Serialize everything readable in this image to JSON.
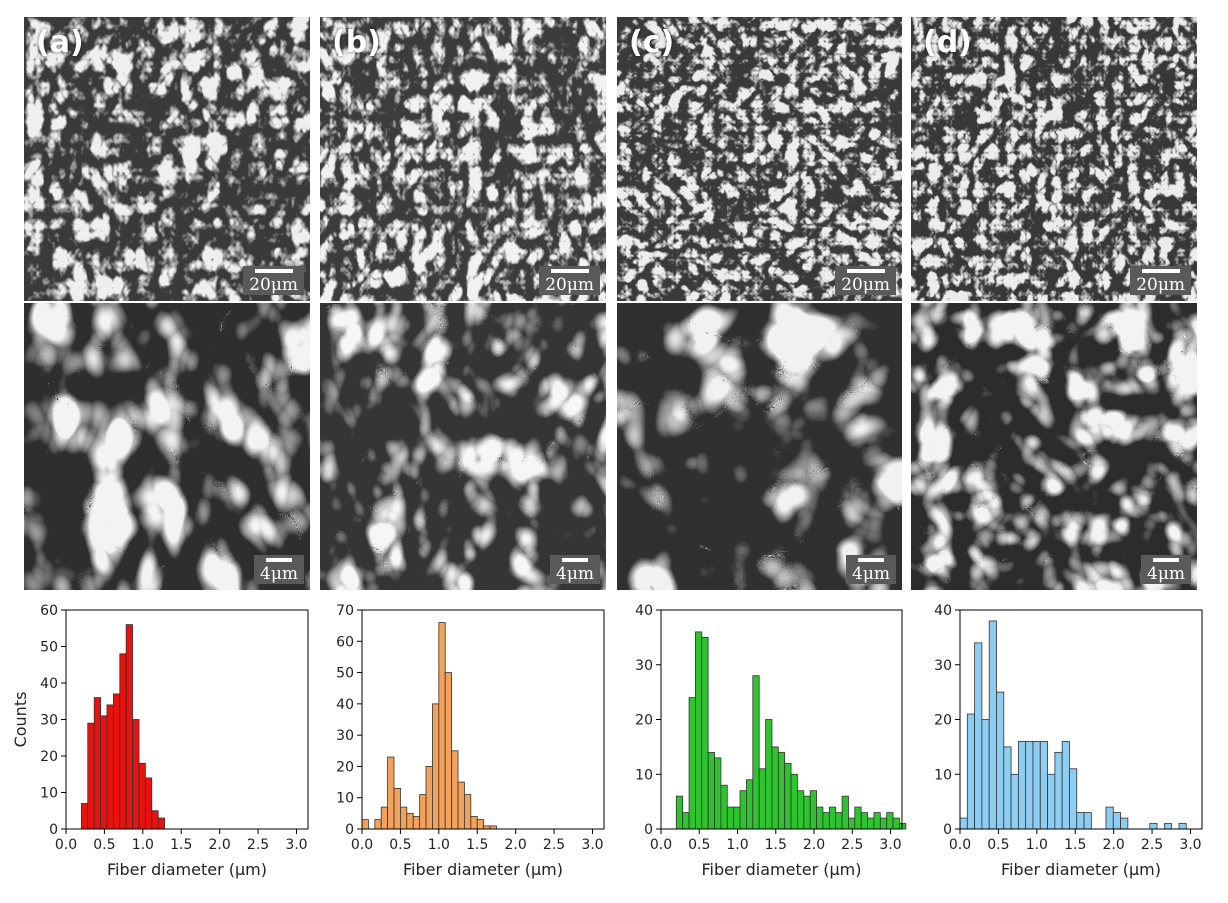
{
  "panels": [
    {
      "label": "(a)",
      "scale_top": "20μm",
      "scale_bottom": "4μm",
      "hist_color": "#e8120f"
    },
    {
      "label": "(b)",
      "scale_top": "20μm",
      "scale_bottom": "4μm",
      "hist_color": "#f2a25a"
    },
    {
      "label": "(c)",
      "scale_top": "20μm",
      "scale_bottom": "4μm",
      "hist_color": "#2ec42e"
    },
    {
      "label": "(d)",
      "scale_top": "20μm",
      "scale_bottom": "4μm",
      "hist_color": "#8ecdf2"
    }
  ],
  "chart_data": [
    {
      "type": "bar",
      "xlabel": "Fiber diameter (μm)",
      "ylabel": "Counts",
      "xlim": [
        0,
        3.15
      ],
      "ylim": [
        0,
        60
      ],
      "xticks": [
        "0.0",
        "0.5",
        "1.0",
        "1.5",
        "2.0",
        "2.5",
        "3.0"
      ],
      "yticks": [
        "0",
        "10",
        "20",
        "30",
        "40",
        "50",
        "60"
      ],
      "bin_width": 0.0833,
      "bin_starts": [
        0.2,
        0.283,
        0.367,
        0.45,
        0.533,
        0.617,
        0.7,
        0.783,
        0.867,
        0.95,
        1.033,
        1.117,
        1.2
      ],
      "values": [
        7,
        29,
        36,
        31,
        34,
        37,
        48,
        56,
        30,
        18,
        14,
        5,
        3
      ]
    },
    {
      "type": "bar",
      "xlabel": "Fiber diameter (μm)",
      "ylabel": "",
      "xlim": [
        0,
        3.15
      ],
      "ylim": [
        0,
        70
      ],
      "xticks": [
        "0.0",
        "0.5",
        "1.0",
        "1.5",
        "2.0",
        "2.5",
        "3.0"
      ],
      "yticks": [
        "0",
        "10",
        "20",
        "30",
        "40",
        "50",
        "60",
        "70"
      ],
      "bin_width": 0.0833,
      "bin_starts": [
        0.0,
        0.083,
        0.167,
        0.25,
        0.333,
        0.417,
        0.5,
        0.583,
        0.667,
        0.75,
        0.833,
        0.917,
        1.0,
        1.083,
        1.167,
        1.25,
        1.333,
        1.417,
        1.5,
        1.583,
        1.667,
        1.75
      ],
      "values": [
        3,
        0,
        3,
        7,
        23,
        13,
        7,
        5,
        4,
        11,
        20,
        40,
        66,
        50,
        25,
        15,
        11,
        4,
        3,
        1,
        1,
        0
      ]
    },
    {
      "type": "bar",
      "xlabel": "Fiber diameter (μm)",
      "ylabel": "",
      "xlim": [
        0,
        3.15
      ],
      "ylim": [
        0,
        40
      ],
      "xticks": [
        "0.0",
        "0.5",
        "1.0",
        "1.5",
        "2.0",
        "2.5",
        "3.0"
      ],
      "yticks": [
        "0",
        "10",
        "20",
        "30",
        "40"
      ],
      "bin_width": 0.0833,
      "bin_starts": [
        0.2,
        0.283,
        0.367,
        0.45,
        0.533,
        0.617,
        0.7,
        0.783,
        0.867,
        0.95,
        1.033,
        1.117,
        1.2,
        1.283,
        1.367,
        1.45,
        1.533,
        1.617,
        1.7,
        1.783,
        1.867,
        1.95,
        2.033,
        2.117,
        2.2,
        2.283,
        2.367,
        2.45,
        2.533,
        2.617,
        2.7,
        2.783,
        2.867,
        2.95,
        3.033,
        3.117
      ],
      "values": [
        6,
        3,
        24,
        36,
        35,
        14,
        13,
        8,
        4,
        4,
        7,
        9,
        28,
        11,
        20,
        15,
        14,
        12,
        10,
        7,
        6,
        7,
        4,
        3,
        4,
        3,
        6,
        2,
        4,
        3,
        2,
        3,
        2,
        3,
        2,
        1
      ]
    },
    {
      "type": "bar",
      "xlabel": "Fiber diameter (μm)",
      "ylabel": "",
      "xlim": [
        0,
        3.15
      ],
      "ylim": [
        0,
        40
      ],
      "xticks": [
        "0.0",
        "0.5",
        "1.0",
        "1.5",
        "2.0",
        "2.5",
        "3.0"
      ],
      "yticks": [
        "0",
        "10",
        "20",
        "30",
        "40"
      ],
      "bin_width": 0.095,
      "bin_starts": [
        0.0,
        0.095,
        0.19,
        0.285,
        0.38,
        0.475,
        0.57,
        0.665,
        0.76,
        0.855,
        0.95,
        1.045,
        1.14,
        1.235,
        1.33,
        1.425,
        1.52,
        1.615,
        1.71,
        1.805,
        1.9,
        1.995,
        2.09,
        2.185,
        2.28,
        2.375,
        2.47,
        2.565,
        2.66,
        2.755,
        2.85,
        2.945
      ],
      "values": [
        2,
        21,
        34,
        20,
        38,
        25,
        15,
        10,
        16,
        16,
        16,
        16,
        10,
        14,
        16,
        11,
        3,
        3,
        0,
        0,
        4,
        3,
        2,
        0,
        0,
        0,
        1,
        0,
        1,
        0,
        1,
        0
      ]
    }
  ]
}
